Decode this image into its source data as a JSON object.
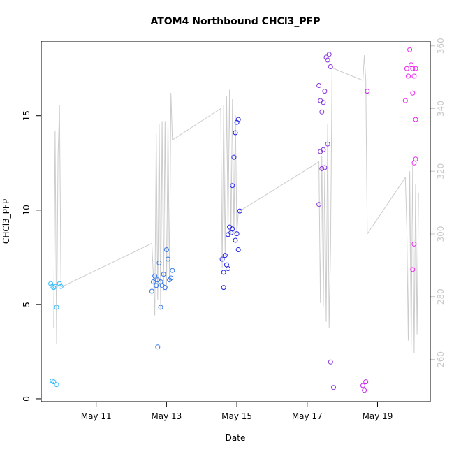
{
  "chart_data": {
    "type": "scatter",
    "title": "ATOM4 Northbound CHCl3_PFP",
    "xlabel": "Date",
    "ylabel": "CHCl3_PFP",
    "x_ticks": [
      "May 11",
      "May 13",
      "May 15",
      "May 17",
      "May 19"
    ],
    "y_ticks": [
      0,
      5,
      10,
      15
    ],
    "y2_ticks": [
      260,
      280,
      300,
      320,
      340,
      360
    ],
    "xlim": [
      "2016-05-09T10:30",
      "2016-05-20T12:00"
    ],
    "ylim": [
      -0.15,
      18.95
    ],
    "y2lim": [
      246.5,
      361.5
    ],
    "right_axis_color": "#c8c8c8",
    "line_color": "#cccccc",
    "points": [
      {
        "x": "2016-05-09T17:00",
        "y": 6.1,
        "c": "#33bbff"
      },
      {
        "x": "2016-05-09T18:00",
        "y": 5.95,
        "c": "#33bbff"
      },
      {
        "x": "2016-05-09T19:00",
        "y": 5.9,
        "c": "#33bbff"
      },
      {
        "x": "2016-05-09T20:00",
        "y": 5.95,
        "c": "#33bbff"
      },
      {
        "x": "2016-05-09T21:00",
        "y": 4.85,
        "c": "#33bbff"
      },
      {
        "x": "2016-05-09T23:00",
        "y": 6.1,
        "c": "#33bbff"
      },
      {
        "x": "2016-05-10T00:00",
        "y": 5.95,
        "c": "#33bbff"
      },
      {
        "x": "2016-05-09T18:00",
        "y": 0.95,
        "c": "#33bbff"
      },
      {
        "x": "2016-05-09T19:00",
        "y": 0.9,
        "c": "#33bbff"
      },
      {
        "x": "2016-05-09T21:00",
        "y": 0.75,
        "c": "#33bbff"
      },
      {
        "x": "2016-05-12T14:00",
        "y": 5.7,
        "c": "#3377ee"
      },
      {
        "x": "2016-05-12T15:00",
        "y": 6.2,
        "c": "#3377ee"
      },
      {
        "x": "2016-05-12T16:00",
        "y": 6.5,
        "c": "#3377ee"
      },
      {
        "x": "2016-05-12T17:00",
        "y": 6.0,
        "c": "#3377ee"
      },
      {
        "x": "2016-05-12T18:00",
        "y": 6.3,
        "c": "#3377ee"
      },
      {
        "x": "2016-05-12T19:00",
        "y": 7.2,
        "c": "#3377ee"
      },
      {
        "x": "2016-05-12T20:00",
        "y": 6.2,
        "c": "#3377ee"
      },
      {
        "x": "2016-05-12T21:00",
        "y": 6.0,
        "c": "#3377ee"
      },
      {
        "x": "2016-05-12T22:00",
        "y": 6.6,
        "c": "#3377ee"
      },
      {
        "x": "2016-05-12T23:00",
        "y": 5.9,
        "c": "#3377ee"
      },
      {
        "x": "2016-05-13T00:00",
        "y": 7.9,
        "c": "#3377ee"
      },
      {
        "x": "2016-05-13T01:00",
        "y": 7.4,
        "c": "#3377ee"
      },
      {
        "x": "2016-05-13T02:00",
        "y": 6.3,
        "c": "#3377ee"
      },
      {
        "x": "2016-05-13T03:00",
        "y": 6.4,
        "c": "#3377ee"
      },
      {
        "x": "2016-05-13T04:00",
        "y": 6.8,
        "c": "#3377ee"
      },
      {
        "x": "2016-05-12T20:00",
        "y": 4.85,
        "c": "#3377ee"
      },
      {
        "x": "2016-05-12T18:00",
        "y": 2.75,
        "c": "#3377ee"
      },
      {
        "x": "2016-05-14T14:00",
        "y": 7.4,
        "c": "#2222ee"
      },
      {
        "x": "2016-05-14T15:00",
        "y": 6.7,
        "c": "#2222ee"
      },
      {
        "x": "2016-05-14T16:00",
        "y": 7.6,
        "c": "#2222ee"
      },
      {
        "x": "2016-05-14T17:00",
        "y": 7.1,
        "c": "#2222ee"
      },
      {
        "x": "2016-05-14T18:00",
        "y": 8.7,
        "c": "#2222ee"
      },
      {
        "x": "2016-05-14T19:00",
        "y": 9.1,
        "c": "#2222ee"
      },
      {
        "x": "2016-05-14T20:00",
        "y": 8.8,
        "c": "#2222ee"
      },
      {
        "x": "2016-05-14T21:00",
        "y": 11.3,
        "c": "#2222ee"
      },
      {
        "x": "2016-05-14T22:00",
        "y": 12.8,
        "c": "#2222ee"
      },
      {
        "x": "2016-05-14T23:00",
        "y": 14.1,
        "c": "#2222ee"
      },
      {
        "x": "2016-05-15T00:00",
        "y": 14.65,
        "c": "#2222ee"
      },
      {
        "x": "2016-05-15T01:00",
        "y": 14.8,
        "c": "#2222ee"
      },
      {
        "x": "2016-05-15T02:00",
        "y": 9.95,
        "c": "#2222ee"
      },
      {
        "x": "2016-05-15T01:00",
        "y": 7.9,
        "c": "#2222ee"
      },
      {
        "x": "2016-05-14T23:00",
        "y": 8.4,
        "c": "#2222ee"
      },
      {
        "x": "2016-05-15T00:00",
        "y": 8.75,
        "c": "#2222ee"
      },
      {
        "x": "2016-05-14T21:00",
        "y": 9.0,
        "c": "#2222ee"
      },
      {
        "x": "2016-05-14T15:00",
        "y": 5.9,
        "c": "#2222ee"
      },
      {
        "x": "2016-05-14T18:00",
        "y": 6.9,
        "c": "#2222ee"
      },
      {
        "x": "2016-05-17T08:00",
        "y": 16.6,
        "c": "#8833dd"
      },
      {
        "x": "2016-05-17T09:00",
        "y": 15.8,
        "c": "#8833dd"
      },
      {
        "x": "2016-05-17T10:00",
        "y": 15.2,
        "c": "#8833dd"
      },
      {
        "x": "2016-05-17T11:00",
        "y": 15.7,
        "c": "#8833dd"
      },
      {
        "x": "2016-05-17T12:00",
        "y": 16.3,
        "c": "#8833dd"
      },
      {
        "x": "2016-05-17T13:00",
        "y": 18.1,
        "c": "#8833dd"
      },
      {
        "x": "2016-05-17T14:00",
        "y": 17.95,
        "c": "#8833dd"
      },
      {
        "x": "2016-05-17T15:00",
        "y": 18.25,
        "c": "#8833dd"
      },
      {
        "x": "2016-05-17T16:00",
        "y": 17.6,
        "c": "#8833dd"
      },
      {
        "x": "2016-05-17T09:00",
        "y": 13.1,
        "c": "#8833dd"
      },
      {
        "x": "2016-05-17T11:00",
        "y": 13.2,
        "c": "#8833dd"
      },
      {
        "x": "2016-05-17T14:00",
        "y": 13.5,
        "c": "#8833dd"
      },
      {
        "x": "2016-05-17T10:00",
        "y": 12.2,
        "c": "#8833dd"
      },
      {
        "x": "2016-05-17T12:00",
        "y": 12.25,
        "c": "#8833dd"
      },
      {
        "x": "2016-05-17T08:00",
        "y": 10.3,
        "c": "#8833dd"
      },
      {
        "x": "2016-05-17T16:00",
        "y": 1.95,
        "c": "#8833dd"
      },
      {
        "x": "2016-05-17T18:00",
        "y": 0.6,
        "c": "#8833dd"
      },
      {
        "x": "2016-05-18T14:00",
        "y": 0.7,
        "c": "#cc22ee"
      },
      {
        "x": "2016-05-18T15:00",
        "y": 0.45,
        "c": "#cc22ee"
      },
      {
        "x": "2016-05-18T16:00",
        "y": 0.9,
        "c": "#cc22ee"
      },
      {
        "x": "2016-05-18T17:00",
        "y": 16.3,
        "c": "#cc22ee"
      },
      {
        "x": "2016-05-19T19:00",
        "y": 15.8,
        "c": "#ee22ee"
      },
      {
        "x": "2016-05-19T20:00",
        "y": 17.5,
        "c": "#ee22ee"
      },
      {
        "x": "2016-05-19T21:00",
        "y": 17.1,
        "c": "#ee22ee"
      },
      {
        "x": "2016-05-19T22:00",
        "y": 18.5,
        "c": "#ee22ee"
      },
      {
        "x": "2016-05-19T23:00",
        "y": 17.7,
        "c": "#ee22ee"
      },
      {
        "x": "2016-05-20T00:00",
        "y": 17.5,
        "c": "#ee22ee"
      },
      {
        "x": "2016-05-20T01:00",
        "y": 17.1,
        "c": "#ee22ee"
      },
      {
        "x": "2016-05-20T02:00",
        "y": 17.5,
        "c": "#ee22ee"
      },
      {
        "x": "2016-05-20T00:00",
        "y": 16.2,
        "c": "#ee22ee"
      },
      {
        "x": "2016-05-20T02:00",
        "y": 14.8,
        "c": "#ee22ee"
      },
      {
        "x": "2016-05-20T01:00",
        "y": 12.5,
        "c": "#ee22ee"
      },
      {
        "x": "2016-05-20T02:00",
        "y": 12.7,
        "c": "#ee22ee"
      },
      {
        "x": "2016-05-20T01:00",
        "y": 8.2,
        "c": "#ee22ee"
      },
      {
        "x": "2016-05-20T00:00",
        "y": 6.85,
        "c": "#ee22ee"
      }
    ],
    "line": [
      {
        "x": "2016-05-09T19:00",
        "y": 270
      },
      {
        "x": "2016-05-09T20:00",
        "y": 333
      },
      {
        "x": "2016-05-09T21:00",
        "y": 265
      },
      {
        "x": "2016-05-09T22:00",
        "y": 325
      },
      {
        "x": "2016-05-09T23:00",
        "y": 341
      },
      {
        "x": "2016-05-10T00:00",
        "y": 283
      },
      {
        "x": "2016-05-12T14:00",
        "y": 297
      },
      {
        "x": "2016-05-12T15:00",
        "y": 287
      },
      {
        "x": "2016-05-12T16:00",
        "y": 274
      },
      {
        "x": "2016-05-12T17:00",
        "y": 332
      },
      {
        "x": "2016-05-12T18:00",
        "y": 279
      },
      {
        "x": "2016-05-12T19:00",
        "y": 335
      },
      {
        "x": "2016-05-12T20:00",
        "y": 276
      },
      {
        "x": "2016-05-12T21:00",
        "y": 336
      },
      {
        "x": "2016-05-12T22:00",
        "y": 282
      },
      {
        "x": "2016-05-12T23:00",
        "y": 336
      },
      {
        "x": "2016-05-13T00:00",
        "y": 282
      },
      {
        "x": "2016-05-13T01:00",
        "y": 336
      },
      {
        "x": "2016-05-13T02:00",
        "y": 285
      },
      {
        "x": "2016-05-13T03:00",
        "y": 345
      },
      {
        "x": "2016-05-13T04:00",
        "y": 330
      },
      {
        "x": "2016-05-14T13:00",
        "y": 340
      },
      {
        "x": "2016-05-14T14:00",
        "y": 289
      },
      {
        "x": "2016-05-14T15:00",
        "y": 341
      },
      {
        "x": "2016-05-14T16:00",
        "y": 293
      },
      {
        "x": "2016-05-14T17:00",
        "y": 344
      },
      {
        "x": "2016-05-14T18:00",
        "y": 300
      },
      {
        "x": "2016-05-14T19:00",
        "y": 346
      },
      {
        "x": "2016-05-14T20:00",
        "y": 300
      },
      {
        "x": "2016-05-14T21:00",
        "y": 343
      },
      {
        "x": "2016-05-14T22:00",
        "y": 300
      },
      {
        "x": "2016-05-14T23:00",
        "y": 338
      },
      {
        "x": "2016-05-15T00:00",
        "y": 300
      },
      {
        "x": "2016-05-15T01:00",
        "y": 307
      },
      {
        "x": "2016-05-17T08:00",
        "y": 323
      },
      {
        "x": "2016-05-17T09:00",
        "y": 278
      },
      {
        "x": "2016-05-17T10:00",
        "y": 325
      },
      {
        "x": "2016-05-17T11:00",
        "y": 277
      },
      {
        "x": "2016-05-17T12:00",
        "y": 320
      },
      {
        "x": "2016-05-17T13:00",
        "y": 272
      },
      {
        "x": "2016-05-17T14:00",
        "y": 335
      },
      {
        "x": "2016-05-17T15:00",
        "y": 270
      },
      {
        "x": "2016-05-17T16:00",
        "y": 296
      },
      {
        "x": "2016-05-17T17:00",
        "y": 353
      },
      {
        "x": "2016-05-18T14:00",
        "y": 349
      },
      {
        "x": "2016-05-18T15:00",
        "y": 357
      },
      {
        "x": "2016-05-18T16:00",
        "y": 349
      },
      {
        "x": "2016-05-18T17:00",
        "y": 300
      },
      {
        "x": "2016-05-19T19:00",
        "y": 318
      },
      {
        "x": "2016-05-19T20:00",
        "y": 302
      },
      {
        "x": "2016-05-19T21:00",
        "y": 266
      },
      {
        "x": "2016-05-19T22:00",
        "y": 320
      },
      {
        "x": "2016-05-19T23:00",
        "y": 264
      },
      {
        "x": "2016-05-20T00:00",
        "y": 322
      },
      {
        "x": "2016-05-20T01:00",
        "y": 262
      },
      {
        "x": "2016-05-20T02:00",
        "y": 316
      },
      {
        "x": "2016-05-20T03:00",
        "y": 268
      },
      {
        "x": "2016-05-20T04:00",
        "y": 313
      }
    ]
  }
}
